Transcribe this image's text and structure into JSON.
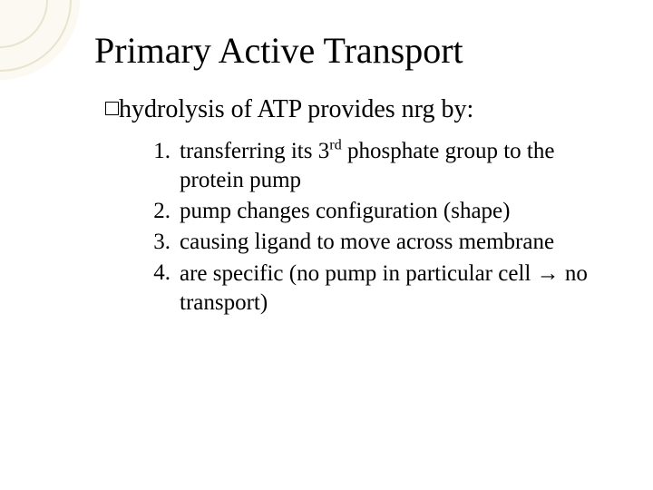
{
  "decor": {
    "quarter_fill": "#fbf9f1",
    "ring_stroke": "#e9e3cf",
    "ring_stroke_width": 2,
    "ring1_r": 52,
    "ring2_r": 78
  },
  "title": {
    "text": "Primary Active Transport",
    "fontsize": 40,
    "color": "#000000"
  },
  "bullet": {
    "text": "hydrolysis of ATP provides nrg by:",
    "fontsize": 28,
    "color": "#000000"
  },
  "items": [
    {
      "num": "1.",
      "html": "transferring its 3<sup>rd</sup> phosphate group to the protein pump"
    },
    {
      "num": "2.",
      "html": "pump changes configuration (shape)"
    },
    {
      "num": "3.",
      "html": "causing ligand to move across membrane"
    },
    {
      "num": "4.",
      "html": "are specific (no pump in particular cell <span class=\"arrow\">&#8594;</span> no transport)"
    }
  ],
  "list": {
    "fontsize": 25,
    "color": "#000000"
  }
}
